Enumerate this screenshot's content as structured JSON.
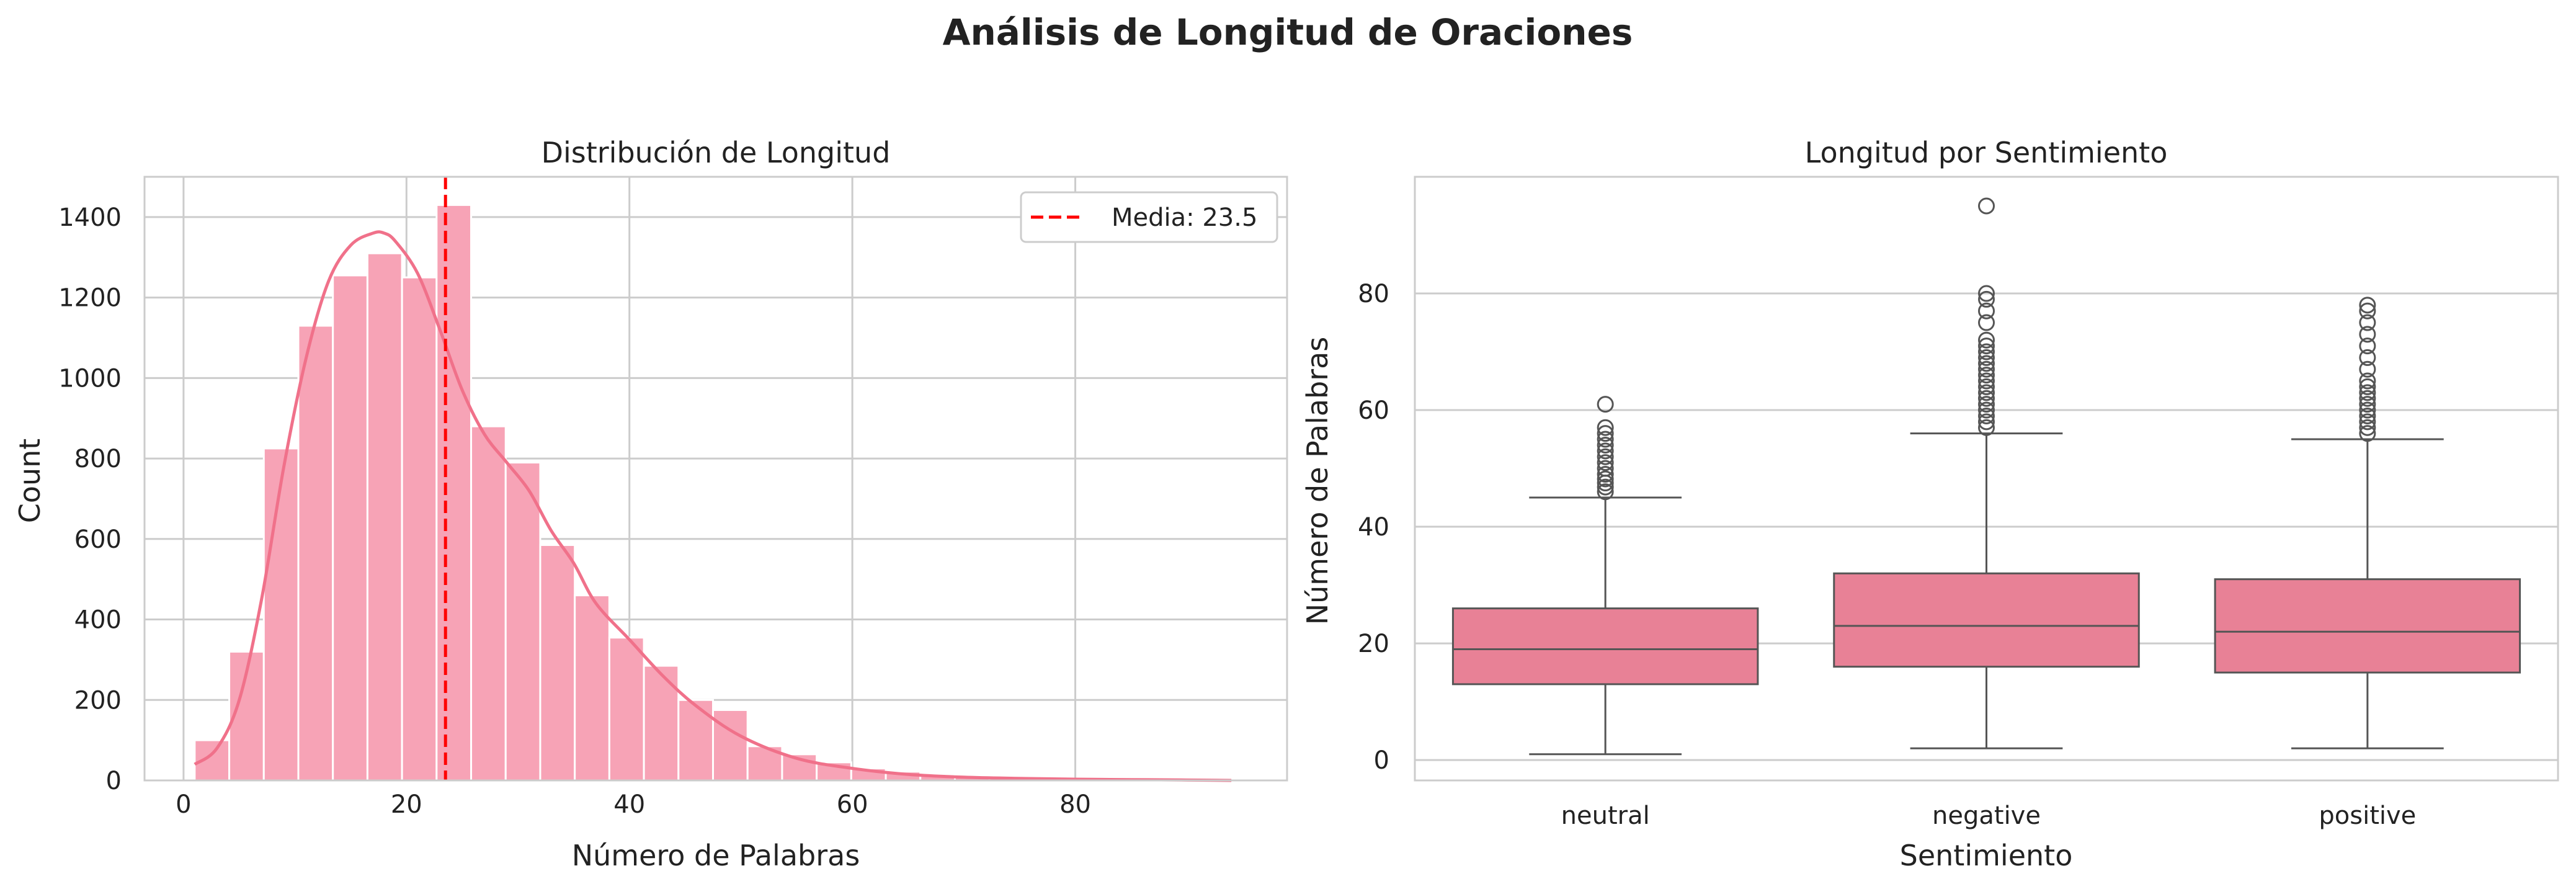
{
  "title": "Análisis de Longitud de Oraciones",
  "chart_data": [
    {
      "type": "bar",
      "subtype": "histogram",
      "title": "Distribución de Longitud",
      "xlabel": "Número de Palabras",
      "ylabel": "Count",
      "xlim": [
        -3.5,
        99
      ],
      "ylim": [
        0,
        1500
      ],
      "xticks": [
        0,
        20,
        40,
        60,
        80
      ],
      "yticks": [
        0,
        200,
        400,
        600,
        800,
        1000,
        1200,
        1400
      ],
      "bins": [
        {
          "x0": 1.0,
          "x1": 4.1,
          "count": 100
        },
        {
          "x0": 4.1,
          "x1": 7.2,
          "count": 320
        },
        {
          "x0": 7.2,
          "x1": 10.3,
          "count": 825
        },
        {
          "x0": 10.3,
          "x1": 13.4,
          "count": 1130
        },
        {
          "x0": 13.4,
          "x1": 16.5,
          "count": 1255
        },
        {
          "x0": 16.5,
          "x1": 19.6,
          "count": 1310
        },
        {
          "x0": 19.6,
          "x1": 22.7,
          "count": 1250
        },
        {
          "x0": 22.7,
          "x1": 25.8,
          "count": 1430
        },
        {
          "x0": 25.8,
          "x1": 28.9,
          "count": 880
        },
        {
          "x0": 28.9,
          "x1": 32.0,
          "count": 790
        },
        {
          "x0": 32.0,
          "x1": 35.1,
          "count": 585
        },
        {
          "x0": 35.1,
          "x1": 38.2,
          "count": 460
        },
        {
          "x0": 38.2,
          "x1": 41.3,
          "count": 355
        },
        {
          "x0": 41.3,
          "x1": 44.4,
          "count": 285
        },
        {
          "x0": 44.4,
          "x1": 47.5,
          "count": 200
        },
        {
          "x0": 47.5,
          "x1": 50.6,
          "count": 175
        },
        {
          "x0": 50.6,
          "x1": 53.7,
          "count": 85
        },
        {
          "x0": 53.7,
          "x1": 56.8,
          "count": 65
        },
        {
          "x0": 56.8,
          "x1": 59.9,
          "count": 45
        },
        {
          "x0": 59.9,
          "x1": 63.0,
          "count": 30
        },
        {
          "x0": 63.0,
          "x1": 66.1,
          "count": 22
        },
        {
          "x0": 66.1,
          "x1": 69.2,
          "count": 15
        },
        {
          "x0": 69.2,
          "x1": 72.3,
          "count": 10
        },
        {
          "x0": 72.3,
          "x1": 75.4,
          "count": 7
        },
        {
          "x0": 75.4,
          "x1": 78.5,
          "count": 5
        },
        {
          "x0": 78.5,
          "x1": 81.6,
          "count": 4
        },
        {
          "x0": 81.6,
          "x1": 84.7,
          "count": 3
        },
        {
          "x0": 84.7,
          "x1": 87.8,
          "count": 2
        },
        {
          "x0": 87.8,
          "x1": 90.9,
          "count": 2
        },
        {
          "x0": 90.9,
          "x1": 94.0,
          "count": 1
        }
      ],
      "kde": {
        "x": [
          1,
          3,
          5,
          7,
          9,
          11,
          13,
          15,
          17,
          18,
          19,
          21,
          23,
          25,
          27,
          29,
          31,
          33,
          35,
          37,
          40,
          43,
          46,
          50,
          55,
          60,
          65,
          70,
          75,
          80,
          85,
          90,
          94
        ],
        "y": [
          40,
          80,
          200,
          450,
          780,
          1050,
          1240,
          1330,
          1360,
          1360,
          1340,
          1260,
          1120,
          970,
          860,
          790,
          720,
          620,
          540,
          440,
          350,
          260,
          185,
          110,
          55,
          30,
          15,
          8,
          5,
          3,
          2,
          1,
          0
        ]
      },
      "mean_line": {
        "x": 23.5,
        "label": "Media: 23.5"
      },
      "legend": {
        "position": "upper right",
        "entries": [
          "Media: 23.5"
        ]
      },
      "grid": true,
      "colors": {
        "bars": "#f7a3b6",
        "kde": "#f0718a",
        "mean": "#ff0000",
        "grid": "#cccccc"
      }
    },
    {
      "type": "box",
      "title": "Longitud por Sentimiento",
      "xlabel": "Sentimiento",
      "ylabel": "Número de Palabras",
      "ylim": [
        -3.5,
        100
      ],
      "yticks": [
        0,
        20,
        40,
        60,
        80
      ],
      "categories": [
        "neutral",
        "negative",
        "positive"
      ],
      "boxes": [
        {
          "category": "neutral",
          "whisker_low": 1,
          "q1": 13,
          "median": 19,
          "q3": 26,
          "whisker_high": 45,
          "outliers": [
            46,
            46.8,
            47.5,
            48.2,
            49,
            50,
            51,
            52,
            53,
            54,
            55,
            56,
            57,
            61
          ]
        },
        {
          "category": "negative",
          "whisker_low": 2,
          "q1": 16,
          "median": 23,
          "q3": 32,
          "whisker_high": 56,
          "outliers": [
            57,
            58,
            59,
            60,
            61,
            62,
            63,
            64,
            65,
            66,
            67,
            68,
            69,
            70,
            71,
            72,
            75,
            77,
            79,
            80,
            95
          ]
        },
        {
          "category": "positive",
          "whisker_low": 2,
          "q1": 15,
          "median": 22,
          "q3": 31,
          "whisker_high": 55,
          "outliers": [
            56,
            57,
            58,
            59,
            60,
            61,
            62,
            63,
            64,
            65,
            67,
            69,
            71,
            73,
            75,
            77,
            78
          ]
        }
      ],
      "grid": true,
      "colors": {
        "box": "#e88196",
        "line": "#555555",
        "grid": "#cccccc"
      }
    }
  ]
}
